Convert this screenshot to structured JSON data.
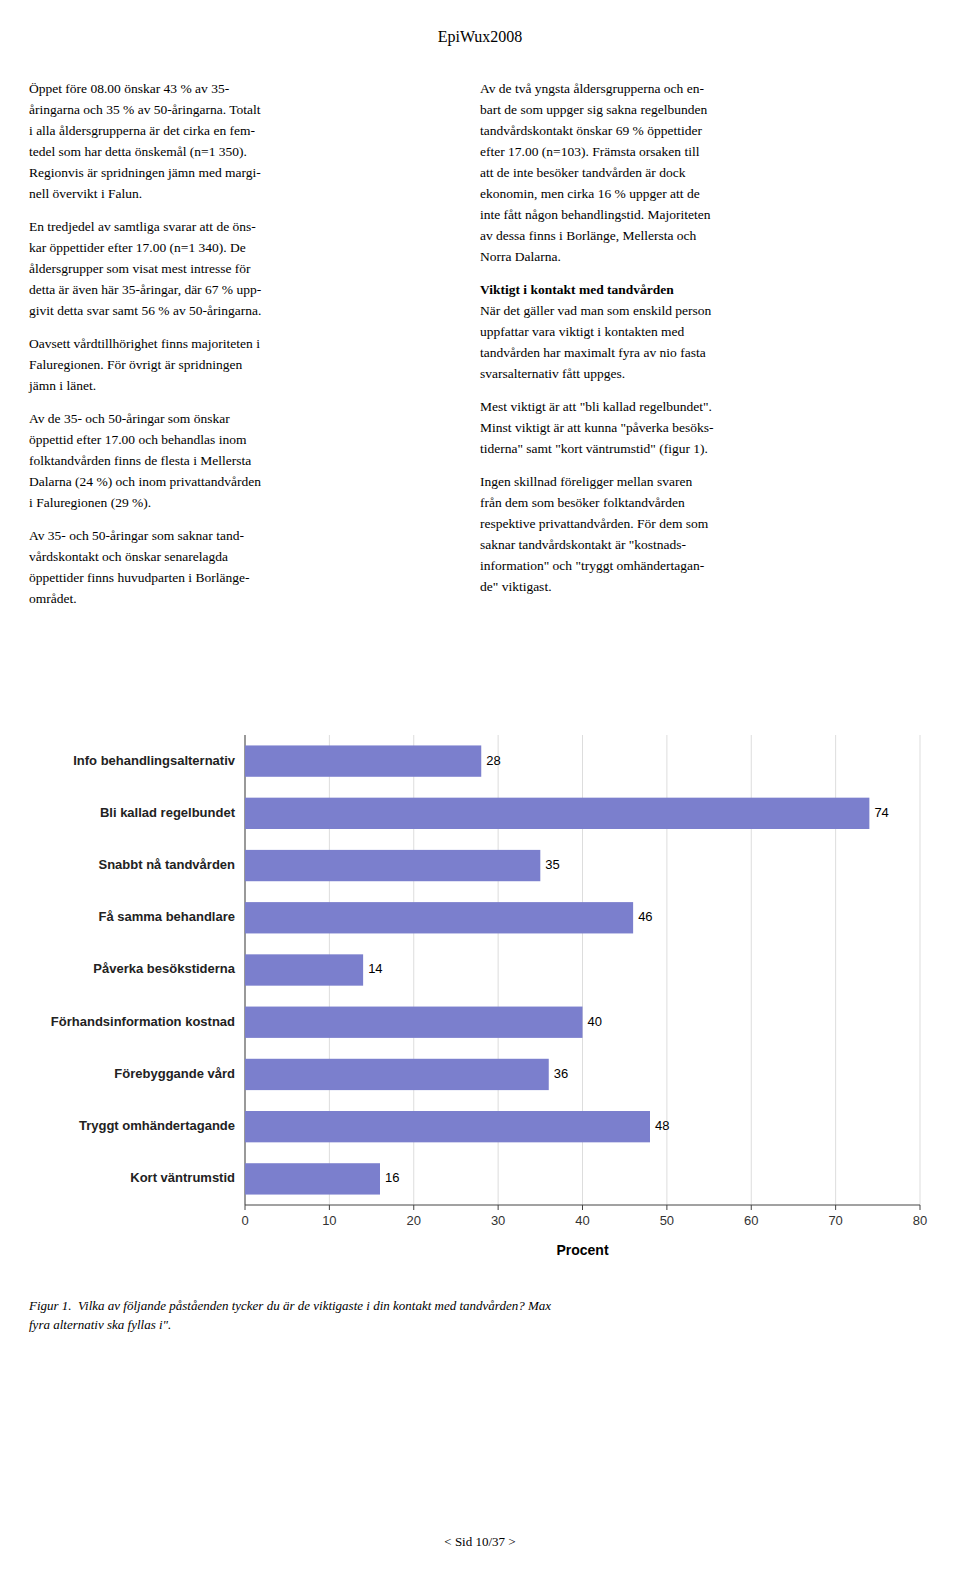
{
  "title": "EpiWux2008",
  "left_col": [
    [
      "Öppet före 08.00 önskar 43 % av 35-",
      "åringarna och 35 % av 50-åringarna. Totalt",
      "i alla åldersgrupperna är det cirka en fem-",
      "tedel som har detta önskemål (n=1 350).",
      "Regionvis är spridningen jämn med margi-",
      "nell övervikt i Falun."
    ],
    [
      "En tredjedel av samtliga svarar att de öns-",
      "kar öppettider efter 17.00 (n=1 340). De",
      "åldersgrupper som visat mest intresse för",
      "detta är även här 35-åringar, där 67 % upp-",
      "givit detta svar samt 56 % av 50-åringarna."
    ],
    [
      "Oavsett vårdtillhörighet finns majoriteten i",
      "Faluregionen. För övrigt är spridningen",
      "jämn i länet."
    ],
    [
      "Av de 35- och 50-åringar som önskar",
      "öppettid efter 17.00 och behandlas inom",
      "folktandvården finns de flesta i Mellersta",
      "Dalarna (24 %) och inom privattandvården",
      "i Faluregionen (29 %)."
    ],
    [
      "Av 35- och 50-åringar som saknar tand-",
      "vårdskontakt och önskar senarelagda",
      "öppettider finns huvudparten i Borlänge-",
      "området."
    ]
  ],
  "right_col": [
    {
      "lines": [
        "Av de två yngsta åldersgrupperna och en-",
        "bart de som uppger sig sakna regelbunden",
        "tandvårdskontakt önskar 69 % öppettider",
        "efter 17.00 (n=103). Främsta orsaken till",
        "att de inte besöker tandvården är dock",
        "ekonomin, men cirka 16 % uppger att de",
        "inte fått någon behandlingstid. Majoriteten",
        "av dessa finns i Borlänge, Mellersta och",
        "Norra Dalarna."
      ]
    },
    {
      "heading": "Viktigt i kontakt med tandvården",
      "lines": [
        "När det gäller vad man som enskild person",
        "uppfattar vara viktigt i kontakten med",
        "tandvården har maximalt fyra av nio fasta",
        "svarsalternativ fått uppges."
      ]
    },
    {
      "lines": [
        "Mest viktigt är att \"bli kallad regelbundet\".",
        "Minst viktigt är att kunna \"påverka besöks-",
        "tiderna\" samt \"kort väntrumstid\" (figur 1)."
      ]
    },
    {
      "lines": [
        "Ingen skillnad föreligger mellan svaren",
        "från dem som besöker folktandvården",
        "respektive privattandvården. För dem som",
        "saknar tandvårdskontakt är \"kostnads-",
        "information\" och \"tryggt omhändertagan-",
        "de\" viktigast."
      ]
    }
  ],
  "caption": [
    "Figur 1.  Vilka av följande påståenden tycker du är de viktigaste i din kontakt med tandvården? Max",
    "fyra alternativ ska fyllas i\"."
  ],
  "footer": "< Sid 10/37 >",
  "chart_data": {
    "type": "bar",
    "orientation": "horizontal",
    "categories": [
      "Info behandlingsalternativ",
      "Bli kallad regelbundet",
      "Snabbt nå tandvården",
      "Få samma behandlare",
      "Påverka besöks­tiderna",
      "Förhandsinformation kostnad",
      "Förebyggande vård",
      "Tryggt omhändertagande",
      "Kort väntrumstid"
    ],
    "values": [
      28,
      74,
      35,
      46,
      14,
      40,
      36,
      48,
      16
    ],
    "color": "#7b7fcd",
    "xlabel": "Procent",
    "xlim": [
      0,
      80
    ],
    "xticks": [
      0,
      10,
      20,
      30,
      40,
      50,
      60,
      70,
      80
    ],
    "grid": true,
    "data_labels": true
  }
}
